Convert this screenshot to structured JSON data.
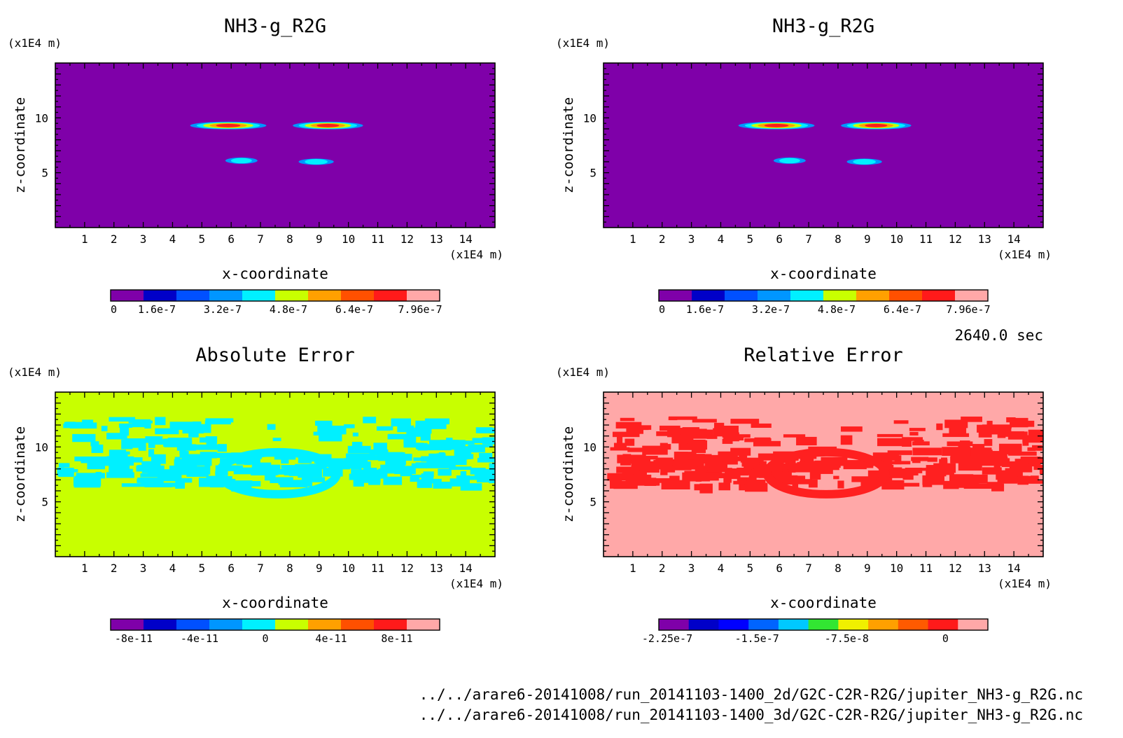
{
  "time_label": "2640.0 sec",
  "files": [
    "../../arare6-20141008/run_20141103-1400_2d/G2C-C2R-R2G/jupiter_NH3-g_R2G.nc",
    "../../arare6-20141008/run_20141103-1400_3d/G2C-C2R-R2G/jupiter_NH3-g_R2G.nc"
  ],
  "chart_data": [
    {
      "type": "heatmap",
      "title": "NH3-g_R2G",
      "xlabel": "x-coordinate",
      "ylabel": "z-coordinate",
      "x_unit": "(x1E4 m)",
      "y_unit": "(x1E4 m)",
      "xlim": [
        0,
        15
      ],
      "ylim": [
        0,
        15
      ],
      "x_ticks": [
        "1",
        "2",
        "3",
        "4",
        "5",
        "6",
        "7",
        "8",
        "9",
        "10",
        "11",
        "12",
        "13",
        "14"
      ],
      "y_ticks": [
        "5",
        "10"
      ],
      "background_color": "#7f00a9",
      "colorbar": {
        "colors": [
          "#7f00a9",
          "#0000c8",
          "#0050ff",
          "#0096ff",
          "#00f0ff",
          "#c8ff00",
          "#ffa000",
          "#ff5000",
          "#ff1a1a",
          "#ffa8a8"
        ],
        "labels": [
          "0",
          "1.6e-7",
          "3.2e-7",
          "4.8e-7",
          "6.4e-7",
          "7.96e-7"
        ]
      },
      "features": [
        {
          "x_range": [
            4.6,
            7.2
          ],
          "z": 9.3,
          "peak_color": "#ff1a1a"
        },
        {
          "x_range": [
            8.1,
            10.5
          ],
          "z": 9.3,
          "peak_color": "#ff1a1a"
        },
        {
          "x_range": [
            5.8,
            6.9
          ],
          "z": 6.1,
          "peak_color": "#00f0ff"
        },
        {
          "x_range": [
            8.3,
            9.5
          ],
          "z": 6.0,
          "peak_color": "#00f0ff"
        }
      ]
    },
    {
      "type": "heatmap",
      "title": "NH3-g_R2G",
      "xlabel": "x-coordinate",
      "ylabel": "z-coordinate",
      "x_unit": "(x1E4 m)",
      "y_unit": "(x1E4 m)",
      "xlim": [
        0,
        15
      ],
      "ylim": [
        0,
        15
      ],
      "x_ticks": [
        "1",
        "2",
        "3",
        "4",
        "5",
        "6",
        "7",
        "8",
        "9",
        "10",
        "11",
        "12",
        "13",
        "14"
      ],
      "y_ticks": [
        "5",
        "10"
      ],
      "background_color": "#7f00a9",
      "colorbar": {
        "colors": [
          "#7f00a9",
          "#0000c8",
          "#0050ff",
          "#0096ff",
          "#00f0ff",
          "#c8ff00",
          "#ffa000",
          "#ff5000",
          "#ff1a1a",
          "#ffa8a8"
        ],
        "labels": [
          "0",
          "1.6e-7",
          "3.2e-7",
          "4.8e-7",
          "6.4e-7",
          "7.96e-7"
        ]
      },
      "features": [
        {
          "x_range": [
            4.6,
            7.2
          ],
          "z": 9.3,
          "peak_color": "#ff1a1a"
        },
        {
          "x_range": [
            8.1,
            10.5
          ],
          "z": 9.3,
          "peak_color": "#ff1a1a"
        },
        {
          "x_range": [
            5.8,
            6.9
          ],
          "z": 6.1,
          "peak_color": "#00f0ff"
        },
        {
          "x_range": [
            8.3,
            9.5
          ],
          "z": 6.0,
          "peak_color": "#00f0ff"
        }
      ]
    },
    {
      "type": "heatmap",
      "title": "Absolute Error",
      "xlabel": "x-coordinate",
      "ylabel": "z-coordinate",
      "x_unit": "(x1E4 m)",
      "y_unit": "(x1E4 m)",
      "xlim": [
        0,
        15
      ],
      "ylim": [
        0,
        15
      ],
      "x_ticks": [
        "1",
        "2",
        "3",
        "4",
        "5",
        "6",
        "7",
        "8",
        "9",
        "10",
        "11",
        "12",
        "13",
        "14"
      ],
      "y_ticks": [
        "5",
        "10"
      ],
      "background_color": "#c8ff00",
      "patch_color": "#00f0ff",
      "colorbar": {
        "colors": [
          "#7f00a9",
          "#0000c8",
          "#0050ff",
          "#0096ff",
          "#00f0ff",
          "#c8ff00",
          "#ffa000",
          "#ff5000",
          "#ff1a1a",
          "#ffa8a8"
        ],
        "labels": [
          "-8e-11",
          "-4e-11",
          "0",
          "4e-11",
          "8e-11"
        ]
      }
    },
    {
      "type": "heatmap",
      "title": "Relative Error",
      "xlabel": "x-coordinate",
      "ylabel": "z-coordinate",
      "x_unit": "(x1E4 m)",
      "y_unit": "(x1E4 m)",
      "xlim": [
        0,
        15
      ],
      "ylim": [
        0,
        15
      ],
      "x_ticks": [
        "1",
        "2",
        "3",
        "4",
        "5",
        "6",
        "7",
        "8",
        "9",
        "10",
        "11",
        "12",
        "13",
        "14"
      ],
      "y_ticks": [
        "5",
        "10"
      ],
      "background_color": "#ffa8a8",
      "patch_color": "#ff2020",
      "colorbar": {
        "colors": [
          "#7f00a9",
          "#0000c8",
          "#0000ff",
          "#0064ff",
          "#00c8ff",
          "#32e632",
          "#f0f000",
          "#ffa000",
          "#ff5a00",
          "#ff1a1a",
          "#ffa8a8"
        ],
        "labels": [
          "-2.25e-7",
          "-1.5e-7",
          "-7.5e-8",
          "0"
        ]
      }
    }
  ]
}
